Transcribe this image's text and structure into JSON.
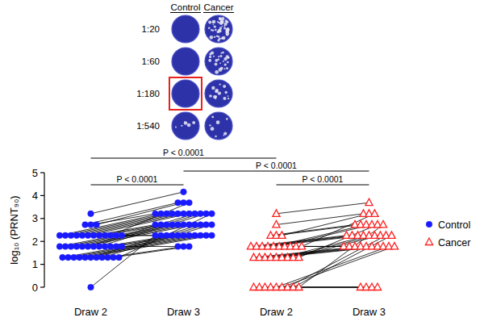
{
  "plaque_panel": {
    "columns": [
      "Control",
      "Cancer"
    ],
    "rows": [
      "1:20",
      "1:60",
      "1:180",
      "1:540"
    ],
    "highlight": {
      "column": "Control",
      "row": "1:180",
      "color": "#e8221c"
    },
    "plaque_counts": [
      [
        0,
        45
      ],
      [
        0,
        25
      ],
      [
        0,
        14
      ],
      [
        6,
        8
      ]
    ]
  },
  "chart_data": {
    "type": "paired_scatter",
    "y_label": "log₁₀ (PRNT₉₀)",
    "categories": [
      "Draw 2",
      "Draw 3",
      "Draw 2",
      "Draw 3"
    ],
    "ylim": [
      0,
      5
    ],
    "yticks": [
      0,
      1,
      2,
      3,
      4,
      5
    ],
    "grid": false,
    "legend": "right",
    "series": [
      {
        "name": "Control",
        "color": "#1a1aff",
        "marker": "circle",
        "values": [
          [
            0,
            2.26
          ],
          [
            3.21,
            4.16
          ],
          [
            2.73,
            3.69
          ],
          [
            2.73,
            3.21
          ],
          [
            2.73,
            3.69
          ],
          [
            2.26,
            3.21
          ],
          [
            2.26,
            3.21
          ],
          [
            2.26,
            3.21
          ],
          [
            2.26,
            3.21
          ],
          [
            2.26,
            3.21
          ],
          [
            2.26,
            3.21
          ],
          [
            2.26,
            2.73
          ],
          [
            2.26,
            2.73
          ],
          [
            2.26,
            2.73
          ],
          [
            2.26,
            3.69
          ],
          [
            2.26,
            2.26
          ],
          [
            2.26,
            2.26
          ],
          [
            1.78,
            2.73
          ],
          [
            1.78,
            2.73
          ],
          [
            1.78,
            2.73
          ],
          [
            1.78,
            2.73
          ],
          [
            1.78,
            2.73
          ],
          [
            1.78,
            3.21
          ],
          [
            1.78,
            3.21
          ],
          [
            1.78,
            3.21
          ],
          [
            1.78,
            2.26
          ],
          [
            1.78,
            2.26
          ],
          [
            1.78,
            2.26
          ],
          [
            1.78,
            1.78
          ],
          [
            1.3,
            2.26
          ],
          [
            1.3,
            2.26
          ],
          [
            1.3,
            2.26
          ],
          [
            1.3,
            2.26
          ],
          [
            1.3,
            2.26
          ],
          [
            1.3,
            2.73
          ],
          [
            1.3,
            2.73
          ],
          [
            1.3,
            2.73
          ],
          [
            1.3,
            1.78
          ],
          [
            1.3,
            1.78
          ],
          [
            1.3,
            3.21
          ]
        ]
      },
      {
        "name": "Cancer",
        "color": "#ff2020",
        "marker": "triangle",
        "values": [
          [
            3.21,
            3.69
          ],
          [
            2.73,
            3.21
          ],
          [
            2.26,
            2.73
          ],
          [
            2.26,
            2.73
          ],
          [
            2.26,
            3.21
          ],
          [
            1.78,
            2.26
          ],
          [
            1.78,
            2.26
          ],
          [
            1.78,
            2.26
          ],
          [
            1.78,
            2.26
          ],
          [
            1.78,
            2.73
          ],
          [
            1.78,
            2.73
          ],
          [
            1.78,
            1.78
          ],
          [
            1.78,
            1.78
          ],
          [
            1.78,
            1.78
          ],
          [
            1.78,
            3.21
          ],
          [
            1.3,
            1.78
          ],
          [
            1.3,
            1.78
          ],
          [
            1.3,
            1.78
          ],
          [
            1.3,
            1.78
          ],
          [
            1.3,
            1.78
          ],
          [
            1.3,
            2.26
          ],
          [
            1.3,
            2.26
          ],
          [
            1.3,
            2.26
          ],
          [
            1.3,
            2.73
          ],
          [
            0,
            0
          ],
          [
            0,
            0
          ],
          [
            0,
            0
          ],
          [
            0,
            0
          ],
          [
            0,
            1.78
          ],
          [
            0,
            1.78
          ],
          [
            0,
            2.26
          ],
          [
            0,
            2.26
          ],
          [
            0,
            2.73
          ]
        ]
      }
    ],
    "annotations": [
      {
        "text": "P < 0.0001",
        "between": [
          0,
          2
        ]
      },
      {
        "text": "P < 0.0001",
        "between": [
          1,
          3
        ]
      },
      {
        "text": "P < 0.0001",
        "between": [
          0,
          1
        ]
      },
      {
        "text": "P < 0.0001",
        "between": [
          2,
          3
        ]
      }
    ]
  }
}
